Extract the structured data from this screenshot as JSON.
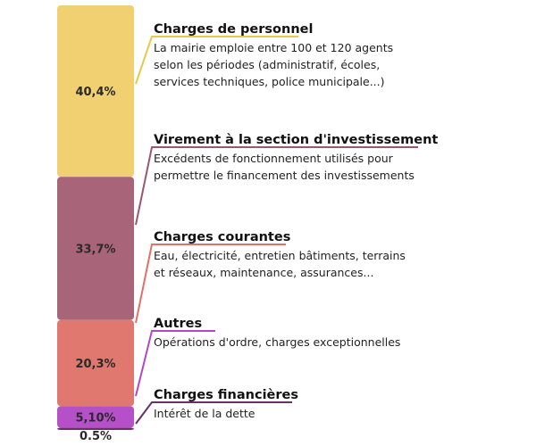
{
  "chart_data": {
    "type": "bar",
    "orientation": "stacked-vertical",
    "unit": "%",
    "segments": [
      {
        "name": "Charges de personnel",
        "value": 40.4,
        "label": "40,4%",
        "color": "#f0d070",
        "line_color": "#e8c84a",
        "description": [
          "La mairie emploie entre 100 et 120 agents",
          "selon les périodes (administratif, écoles,",
          "services techniques, police municipale...)"
        ]
      },
      {
        "name": "Virement à la section d'investissement",
        "value": 33.7,
        "label": "33,7%",
        "color": "#a86478",
        "line_color": "#9a5870",
        "description": [
          "Excédents de fonctionnement utilisés pour",
          "permettre le financement des investissements"
        ]
      },
      {
        "name": "Charges courantes",
        "value": 20.3,
        "label": "20,3%",
        "color": "#e07870",
        "line_color": "#e07068",
        "description": [
          "Eau, électricité, entretien bâtiments, terrains",
          "et réseaux, maintenance, assurances..."
        ]
      },
      {
        "name": "Autres",
        "value": 5.1,
        "label": "5,10%",
        "color": "#b650c8",
        "line_color": "#b248c0",
        "description": [
          "Opérations d'ordre, charges exceptionnelles"
        ]
      },
      {
        "name": "Charges financières",
        "value": 0.5,
        "label": "0.5%",
        "color": "#6a2e68",
        "line_color": "#6a2e68",
        "description": [
          "Intérêt de la dette"
        ]
      }
    ]
  }
}
